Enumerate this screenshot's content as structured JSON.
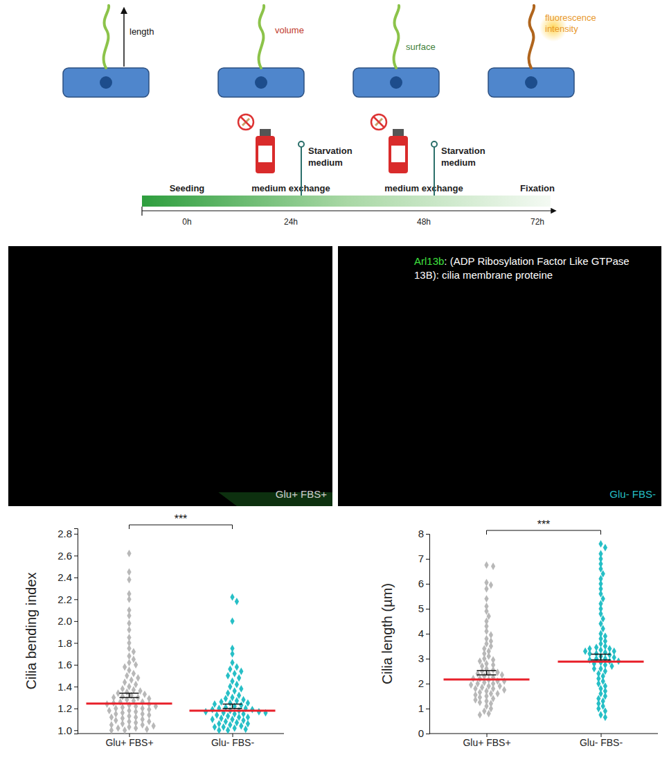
{
  "schematic": {
    "measures": [
      "length",
      "volume",
      "surface",
      "fluorescence intensity"
    ]
  },
  "timeline": {
    "events": [
      {
        "label": "Seeding",
        "time": "0h"
      },
      {
        "label": "medium exchange",
        "time": "24h",
        "medium": "Starvation medium"
      },
      {
        "label": "medium exchange",
        "time": "48h",
        "medium": "Starvation medium"
      },
      {
        "label": "Fixation",
        "time": "72h"
      }
    ]
  },
  "micrographs": {
    "panels": [
      "Glu+ FBS+",
      "Glu- FBS-"
    ],
    "stain": {
      "name": "Arl13b",
      "text": ": (ADP Ribosylation Factor Like GTPase 13B): cilia membrane proteine"
    }
  },
  "chart_data": [
    {
      "type": "strip",
      "y_label": "Cilia bending index",
      "categories": [
        "Glu+ FBS+",
        "Glu- FBS-"
      ],
      "significance": "***",
      "ylim": [
        0.97,
        2.85
      ],
      "yticks": [
        {
          "value": 1,
          "label": "1.0"
        },
        1.2,
        1.4,
        1.6,
        1.8,
        {
          "value": 2,
          "label": "2.0"
        },
        2.2,
        2.4,
        2.6,
        2.8
      ],
      "groups": [
        {
          "color": "#b8b8b8",
          "marker": "diamond",
          "median": 1.245,
          "ci": [
            1.3,
            1.34
          ],
          "values": [
            2.62,
            2.45,
            2.38,
            2.25,
            2.2,
            2.1,
            2.05,
            1.98,
            1.92,
            1.85,
            1.8,
            1.75,
            1.72,
            1.68,
            1.65,
            1.62,
            1.6,
            1.58,
            1.55,
            1.52,
            1.5,
            1.48,
            1.46,
            1.44,
            1.42,
            1.4,
            1.38,
            1.37,
            1.36,
            1.35,
            1.34,
            1.33,
            1.32,
            1.31,
            1.3,
            1.3,
            1.29,
            1.28,
            1.27,
            1.26,
            1.26,
            1.25,
            1.24,
            1.24,
            1.23,
            1.22,
            1.22,
            1.21,
            1.2,
            1.2,
            1.19,
            1.18,
            1.18,
            1.17,
            1.16,
            1.15,
            1.15,
            1.14,
            1.13,
            1.12,
            1.12,
            1.11,
            1.1,
            1.09,
            1.08,
            1.08,
            1.07,
            1.06,
            1.05,
            1.05,
            1.04,
            1.03,
            1.02,
            1.02,
            1.01,
            1.0,
            1.0
          ]
        },
        {
          "color": "#26bfc6",
          "marker": "diamond",
          "median": 1.18,
          "ci": [
            1.2,
            1.24
          ],
          "values": [
            2.22,
            2.18,
            2.0,
            1.75,
            1.7,
            1.62,
            1.58,
            1.56,
            1.54,
            1.52,
            1.5,
            1.48,
            1.45,
            1.42,
            1.4,
            1.38,
            1.36,
            1.34,
            1.32,
            1.3,
            1.29,
            1.28,
            1.27,
            1.26,
            1.25,
            1.25,
            1.24,
            1.23,
            1.22,
            1.21,
            1.2,
            1.2,
            1.19,
            1.19,
            1.18,
            1.18,
            1.17,
            1.17,
            1.16,
            1.16,
            1.15,
            1.15,
            1.14,
            1.13,
            1.12,
            1.12,
            1.11,
            1.1,
            1.1,
            1.09,
            1.08,
            1.07,
            1.06,
            1.06,
            1.05,
            1.04,
            1.03,
            1.03,
            1.02,
            1.01,
            1.0,
            1.0
          ]
        }
      ]
    },
    {
      "type": "strip",
      "y_label": "Cilia length (µm)",
      "categories": [
        "Glu+ FBS+",
        "Glu- FBS-"
      ],
      "significance": "***",
      "ylim": [
        0,
        8
      ],
      "yticks": [
        0,
        1,
        2,
        3,
        4,
        5,
        6,
        7,
        8
      ],
      "groups": [
        {
          "color": "#b8b8b8",
          "marker": "diamond",
          "median": 2.17,
          "ci": [
            2.35,
            2.52
          ],
          "values": [
            6.75,
            6.7,
            6.05,
            5.95,
            5.8,
            5.4,
            5.1,
            4.9,
            4.7,
            4.5,
            4.3,
            4.1,
            3.95,
            3.8,
            3.7,
            3.6,
            3.5,
            3.4,
            3.3,
            3.2,
            3.1,
            3.0,
            2.95,
            2.9,
            2.8,
            2.75,
            2.7,
            2.6,
            2.55,
            2.5,
            2.45,
            2.4,
            2.4,
            2.35,
            2.3,
            2.25,
            2.2,
            2.2,
            2.15,
            2.1,
            2.1,
            2.05,
            2.0,
            2.0,
            1.95,
            1.9,
            1.9,
            1.85,
            1.8,
            1.8,
            1.75,
            1.7,
            1.65,
            1.6,
            1.6,
            1.55,
            1.5,
            1.45,
            1.4,
            1.35,
            1.3,
            1.25,
            1.2,
            1.1,
            1.0,
            0.9,
            0.8,
            0.75
          ]
        },
        {
          "color": "#26bfc6",
          "marker": "diamond",
          "median": 2.88,
          "ci": [
            2.95,
            3.18
          ],
          "values": [
            7.6,
            7.45,
            7.2,
            7.0,
            6.8,
            6.6,
            6.4,
            6.2,
            6.0,
            5.8,
            5.6,
            5.4,
            5.2,
            5.0,
            4.8,
            4.6,
            4.4,
            4.2,
            4.0,
            3.9,
            3.8,
            3.7,
            3.6,
            3.5,
            3.45,
            3.4,
            3.4,
            3.35,
            3.3,
            3.3,
            3.25,
            3.2,
            3.2,
            3.15,
            3.1,
            3.05,
            3.0,
            3.0,
            2.95,
            2.9,
            2.9,
            2.85,
            2.8,
            2.75,
            2.7,
            2.6,
            2.6,
            2.5,
            2.4,
            2.3,
            2.2,
            2.1,
            2.0,
            1.9,
            1.8,
            1.7,
            1.6,
            1.5,
            1.4,
            1.3,
            1.2,
            1.1,
            1.0,
            0.9,
            0.75,
            0.65
          ]
        }
      ]
    }
  ]
}
